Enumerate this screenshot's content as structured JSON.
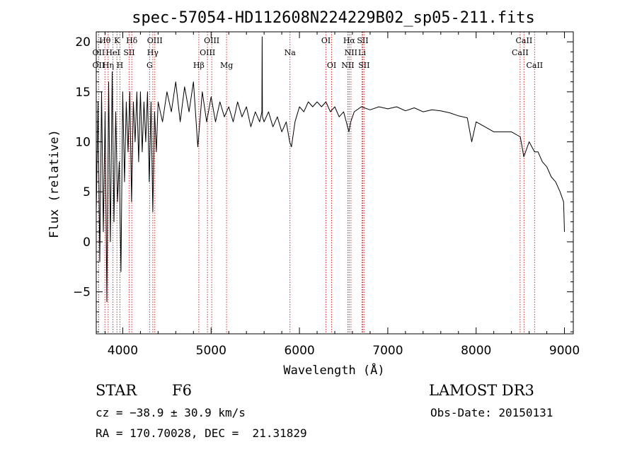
{
  "chart_data": {
    "type": "line",
    "title": "spec-57054-HD112608N224229B02_sp05-211.fits",
    "xlabel": "Wavelength (Å)",
    "ylabel": "Flux (relative)",
    "xlim": [
      3700,
      9100
    ],
    "ylim": [
      -9.2,
      21
    ],
    "x_ticks": [
      4000,
      5000,
      6000,
      7000,
      8000,
      9000
    ],
    "y_ticks": [
      -5,
      0,
      5,
      10,
      15,
      20
    ],
    "x_tick_labels": [
      "4000",
      "5000",
      "6000",
      "7000",
      "8000",
      "9000"
    ],
    "y_tick_labels": [
      "−5",
      "0",
      "5",
      "10",
      "15",
      "20"
    ],
    "series": [
      {
        "name": "flux",
        "points": [
          [
            3700,
            3
          ],
          [
            3720,
            14
          ],
          [
            3740,
            -2
          ],
          [
            3760,
            15
          ],
          [
            3780,
            1
          ],
          [
            3800,
            13
          ],
          [
            3820,
            -6
          ],
          [
            3840,
            16
          ],
          [
            3860,
            0
          ],
          [
            3880,
            17
          ],
          [
            3900,
            2
          ],
          [
            3920,
            13
          ],
          [
            3940,
            4
          ],
          [
            3960,
            8
          ],
          [
            3980,
            -3
          ],
          [
            4000,
            15
          ],
          [
            4020,
            6
          ],
          [
            4040,
            14
          ],
          [
            4060,
            9
          ],
          [
            4080,
            15
          ],
          [
            4100,
            4
          ],
          [
            4120,
            14
          ],
          [
            4140,
            10
          ],
          [
            4160,
            15
          ],
          [
            4180,
            8
          ],
          [
            4200,
            15
          ],
          [
            4220,
            9
          ],
          [
            4240,
            14
          ],
          [
            4260,
            10
          ],
          [
            4280,
            15
          ],
          [
            4300,
            6
          ],
          [
            4320,
            14
          ],
          [
            4340,
            3
          ],
          [
            4360,
            13
          ],
          [
            4380,
            9
          ],
          [
            4400,
            14
          ],
          [
            4450,
            12
          ],
          [
            4500,
            15
          ],
          [
            4550,
            13
          ],
          [
            4600,
            16
          ],
          [
            4650,
            12
          ],
          [
            4700,
            15.5
          ],
          [
            4750,
            13
          ],
          [
            4800,
            16
          ],
          [
            4850,
            9.5
          ],
          [
            4900,
            15
          ],
          [
            4950,
            12
          ],
          [
            5000,
            14.5
          ],
          [
            5050,
            12
          ],
          [
            5100,
            14
          ],
          [
            5150,
            12.5
          ],
          [
            5200,
            13.5
          ],
          [
            5250,
            12
          ],
          [
            5300,
            14
          ],
          [
            5350,
            12.5
          ],
          [
            5400,
            13.5
          ],
          [
            5450,
            11.5
          ],
          [
            5500,
            13
          ],
          [
            5550,
            12
          ],
          [
            5575,
            13
          ],
          [
            5578,
            20.5
          ],
          [
            5581,
            12.5
          ],
          [
            5600,
            12
          ],
          [
            5650,
            13
          ],
          [
            5700,
            11.5
          ],
          [
            5750,
            12.5
          ],
          [
            5800,
            11
          ],
          [
            5850,
            12
          ],
          [
            5890,
            10
          ],
          [
            5910,
            9.5
          ],
          [
            5950,
            12
          ],
          [
            6000,
            13.5
          ],
          [
            6050,
            13
          ],
          [
            6100,
            14
          ],
          [
            6150,
            13.5
          ],
          [
            6200,
            14
          ],
          [
            6250,
            13.5
          ],
          [
            6300,
            14
          ],
          [
            6350,
            13
          ],
          [
            6400,
            13.5
          ],
          [
            6450,
            12.5
          ],
          [
            6500,
            13
          ],
          [
            6560,
            11
          ],
          [
            6580,
            12
          ],
          [
            6620,
            13
          ],
          [
            6700,
            13.5
          ],
          [
            6800,
            13.2
          ],
          [
            6900,
            13.5
          ],
          [
            7000,
            13.3
          ],
          [
            7100,
            13.5
          ],
          [
            7200,
            13.1
          ],
          [
            7300,
            13.4
          ],
          [
            7400,
            13
          ],
          [
            7500,
            13.2
          ],
          [
            7600,
            13.1
          ],
          [
            7700,
            12.9
          ],
          [
            7800,
            12.6
          ],
          [
            7900,
            12.4
          ],
          [
            7950,
            10
          ],
          [
            8000,
            12
          ],
          [
            8100,
            11.5
          ],
          [
            8200,
            11
          ],
          [
            8300,
            11
          ],
          [
            8400,
            11
          ],
          [
            8500,
            10.5
          ],
          [
            8540,
            8.5
          ],
          [
            8600,
            10
          ],
          [
            8662,
            9
          ],
          [
            8700,
            9
          ],
          [
            8750,
            8
          ],
          [
            8800,
            7.5
          ],
          [
            8850,
            6.5
          ],
          [
            8900,
            6
          ],
          [
            8950,
            5
          ],
          [
            8990,
            4
          ],
          [
            9000,
            1
          ]
        ]
      }
    ],
    "lines": [
      {
        "name": "Hθ",
        "wl": 3798,
        "row": 0
      },
      {
        "name": "K",
        "wl": 3934,
        "row": 0
      },
      {
        "name": "Hδ",
        "wl": 4102,
        "row": 0
      },
      {
        "name": "OIII",
        "wl": 4363,
        "row": 0
      },
      {
        "name": "OIII",
        "wl": 5007,
        "row": 0
      },
      {
        "name": "OI",
        "wl": 6300,
        "row": 0
      },
      {
        "name": "Hα",
        "wl": 6563,
        "row": 0
      },
      {
        "name": "SII",
        "wl": 6716,
        "row": 0
      },
      {
        "name": "CaII",
        "wl": 8542,
        "row": 0
      },
      {
        "name": "OII",
        "wl": 3727,
        "row": 1
      },
      {
        "name": "HeI",
        "wl": 3889,
        "row": 1
      },
      {
        "name": "SII",
        "wl": 4072,
        "row": 1
      },
      {
        "name": "Hγ",
        "wl": 4340,
        "row": 1
      },
      {
        "name": "OIII",
        "wl": 4959,
        "row": 1
      },
      {
        "name": "Na",
        "wl": 5893,
        "row": 1
      },
      {
        "name": "NII",
        "wl": 6583,
        "row": 1
      },
      {
        "name": "Li",
        "wl": 6708,
        "row": 1
      },
      {
        "name": "CaII",
        "wl": 8498,
        "row": 1
      },
      {
        "name": "OII",
        "wl": 3727,
        "row": 2
      },
      {
        "name": "Hη",
        "wl": 3835,
        "row": 2
      },
      {
        "name": "H",
        "wl": 3968,
        "row": 2
      },
      {
        "name": "G",
        "wl": 4304,
        "row": 2
      },
      {
        "name": "Hβ",
        "wl": 4861,
        "row": 2
      },
      {
        "name": "Mg",
        "wl": 5175,
        "row": 2
      },
      {
        "name": "OI",
        "wl": 6364,
        "row": 2
      },
      {
        "name": "NII",
        "wl": 6548,
        "row": 2
      },
      {
        "name": "SII",
        "wl": 6731,
        "row": 2
      },
      {
        "name": "CaII",
        "wl": 8662,
        "row": 2
      }
    ],
    "line_color": "#cc3333",
    "spectrum_color": "#000000",
    "grid": false,
    "legend": "none"
  },
  "info": {
    "object_type": "STAR",
    "subclass": "F6",
    "survey": "LAMOST DR3",
    "redshift": "cz = −38.9 ± 30.9 km/s",
    "obs_date": "Obs-Date: 20150131",
    "coords": "RA = 170.70028, DEC =  21.31829"
  }
}
